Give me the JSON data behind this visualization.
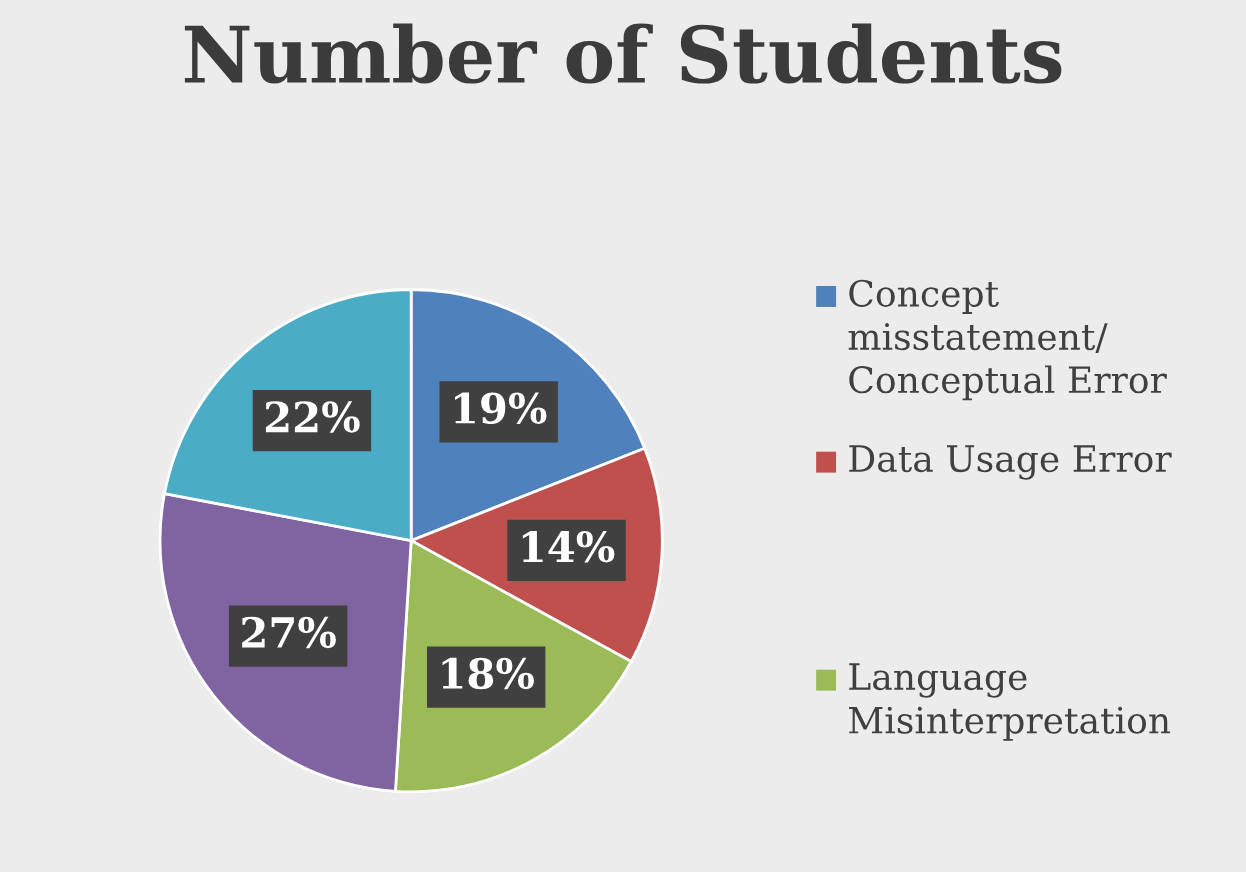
{
  "chart_data": {
    "type": "pie",
    "title": "Number of Students",
    "categories": [
      "Concept misstatement/ Conceptual Error",
      "Data Usage Error",
      "Language Misinterpretation",
      null,
      null
    ],
    "values": [
      19,
      14,
      18,
      27,
      22
    ],
    "colors": [
      "#4f81bd",
      "#c0504d",
      "#9bbb59",
      "#8064a2",
      "#4bacc6"
    ],
    "value_labels": [
      "19%",
      "14%",
      "18%",
      "27%",
      "22%"
    ],
    "legend": "right"
  }
}
